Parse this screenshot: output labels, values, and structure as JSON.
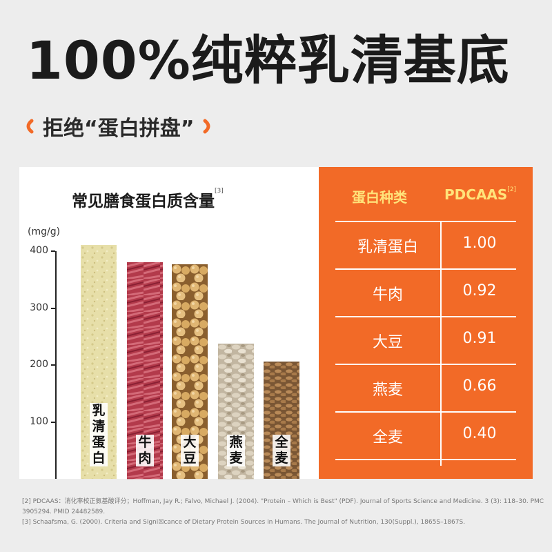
{
  "header": {
    "title": "100%纯粹乳清基底",
    "subtitle": "拒绝“蛋白拼盘”"
  },
  "colors": {
    "accent": "#f26a27",
    "header_text": "#ffe37a"
  },
  "chart_data": {
    "type": "bar",
    "title": "常见膳食蛋白质含量",
    "title_ref": "[3]",
    "ylabel": "(mg/g)",
    "ylim": [
      0,
      400
    ],
    "yticks": [
      100,
      200,
      300,
      400
    ],
    "categories": [
      "乳清蛋白",
      "牛肉",
      "大豆",
      "燕麦",
      "全麦"
    ],
    "values": [
      411,
      381,
      377,
      238,
      206
    ],
    "textures": [
      "whey-powder",
      "beef",
      "soybean",
      "oat",
      "wheat"
    ]
  },
  "table": {
    "col1_header": "蛋白种类",
    "col2_header": "PDCAAS",
    "col2_ref": "[2]",
    "rows": [
      {
        "name": "乳清蛋白",
        "value": "1.00"
      },
      {
        "name": "牛肉",
        "value": "0.92"
      },
      {
        "name": "大豆",
        "value": "0.91"
      },
      {
        "name": "燕麦",
        "value": "0.66"
      },
      {
        "name": "全麦",
        "value": "0.40"
      }
    ]
  },
  "references": [
    "[2] PDCAAS：消化率校正氨基酸评分；Hoffman, Jay R.; Falvo, Michael J. (2004). \"Protein – Which is Best\" (PDF). Journal of Sports Science and Medicine. 3 (3): 118–30. PMC",
    "3905294. PMID 24482589.",
    "[3] Schaafsma, G. (2000). Criteria and Signi☒cance of Dietary Protein Sources in Humans. The Journal of Nutrition, 130(Suppl.), 1865S–1867S."
  ]
}
